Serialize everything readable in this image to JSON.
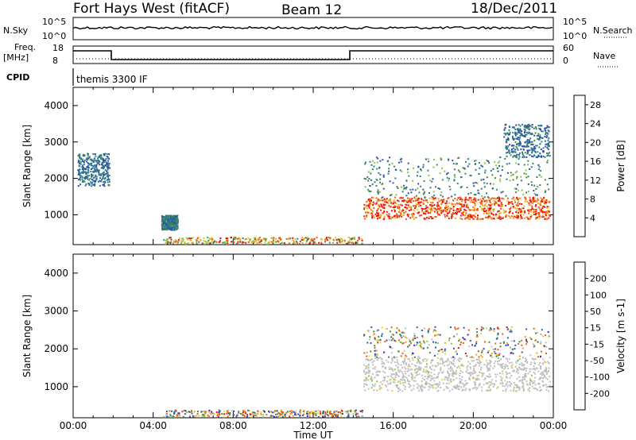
{
  "header": {
    "radar": "Fort Hays West (fitACF)",
    "beam": "Beam 12",
    "date": "18/Dec/2011"
  },
  "top_panels": {
    "nsky_label": "N.Sky",
    "nsearch_label": "N.Search",
    "noise_ticks_left": [
      "10^5",
      "10^0"
    ],
    "noise_ticks_right": [
      "10^5",
      "10^0"
    ],
    "freq_label": "Freq.",
    "freq_unit": "[MHz]",
    "freq_ticks": [
      "18",
      "8"
    ],
    "nave_label": "Nave",
    "nave_ticks": [
      "60",
      "0"
    ],
    "cpid_label": "CPID",
    "cpid_text": "themis 3300 IF"
  },
  "chart_data": [
    {
      "type": "scatter",
      "title": "Power",
      "xlabel": "Time UT",
      "ylabel": "Slant Range [km]",
      "xlim_hours": [
        0,
        24
      ],
      "ylim": [
        180,
        4500
      ],
      "x_ticks": [
        "00:00",
        "04:00",
        "08:00",
        "12:00",
        "16:00",
        "20:00",
        "00:00"
      ],
      "y_ticks": [
        1000,
        2000,
        3000,
        4000
      ],
      "colorbar": {
        "label": "Power [dB]",
        "ticks": [
          4,
          8,
          12,
          16,
          20,
          24,
          28
        ],
        "range": [
          0,
          30
        ],
        "colors": [
          "#1c1cff",
          "#2c4fa8",
          "#2f7a8e",
          "#3d8a4c",
          "#8cc43a",
          "#d6d02a",
          "#f4a020",
          "#ee5a10",
          "#ea1a10",
          "#ff0000"
        ]
      },
      "scatter_regions": [
        {
          "name": "main band",
          "t": [
            14.5,
            23.8
          ],
          "range": [
            900,
            1500
          ],
          "values": [
            16,
            30
          ]
        },
        {
          "name": "upper band",
          "t": [
            14.5,
            23.8
          ],
          "range": [
            1500,
            2600
          ],
          "values": [
            4,
            14
          ]
        },
        {
          "name": "diagonal trail",
          "t": [
            21.5,
            23.8
          ],
          "range": [
            2600,
            3500
          ],
          "values": [
            4,
            10
          ]
        },
        {
          "name": "near range",
          "t": [
            4.5,
            14.5
          ],
          "range": [
            220,
            400
          ],
          "values": [
            8,
            28
          ]
        },
        {
          "name": "evening patch",
          "t": [
            0.2,
            1.8
          ],
          "range": [
            1800,
            2700
          ],
          "values": [
            4,
            10
          ]
        },
        {
          "name": "afternoon patch",
          "t": [
            4.4,
            5.2
          ],
          "range": [
            600,
            1000
          ],
          "values": [
            4,
            12
          ]
        }
      ]
    },
    {
      "type": "scatter",
      "title": "Velocity",
      "xlabel": "Time UT",
      "ylabel": "Slant Range [km]",
      "xlim_hours": [
        0,
        24
      ],
      "ylim": [
        180,
        4500
      ],
      "x_ticks": [
        "00:00",
        "04:00",
        "08:00",
        "12:00",
        "16:00",
        "20:00",
        "00:00"
      ],
      "y_ticks": [
        1000,
        2000,
        3000,
        4000
      ],
      "colorbar": {
        "label": "Velocity [m s-1]",
        "ticks": [
          200,
          100,
          50,
          15,
          -15,
          -50,
          -100,
          -200
        ],
        "ground_scatter_color": "#bfbfbf",
        "colors": [
          "#1c1cff",
          "#2a5aa5",
          "#3d8a4c",
          "#7ccf3a",
          "#bfbfbf",
          "#f6d02c",
          "#f5a020",
          "#ee6010",
          "#ea1a10"
        ]
      },
      "scatter_regions": [
        {
          "name": "ground scatter band",
          "t": [
            14.5,
            23.8
          ],
          "range": [
            900,
            1800
          ],
          "velocity": 0
        },
        {
          "name": "upper scatter",
          "t": [
            14.5,
            23.8
          ],
          "range": [
            1800,
            2600
          ],
          "velocity": -50
        },
        {
          "name": "near range",
          "t": [
            4.5,
            14.5
          ],
          "range": [
            220,
            400
          ],
          "velocity": -50
        }
      ]
    }
  ]
}
